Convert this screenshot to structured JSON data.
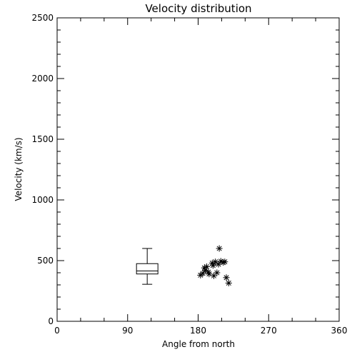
{
  "chart_data": {
    "type": "scatter",
    "title": "Velocity distribution",
    "xlabel": "Angle from north",
    "ylabel": "Velocity (km/s)",
    "xlim": [
      0,
      360
    ],
    "ylim": [
      0,
      2500
    ],
    "xticks": [
      0,
      90,
      180,
      270,
      360
    ],
    "yticks": [
      0,
      500,
      1000,
      1500,
      2000,
      2500
    ],
    "grid": false,
    "marker": "asterisk",
    "box": {
      "x": 115,
      "whisker_low": 305,
      "q1": 390,
      "median": 415,
      "q3": 475,
      "whisker_high": 600
    },
    "points": [
      {
        "x": 183,
        "y": 380
      },
      {
        "x": 186,
        "y": 395
      },
      {
        "x": 188,
        "y": 440
      },
      {
        "x": 189,
        "y": 420
      },
      {
        "x": 191,
        "y": 450
      },
      {
        "x": 193,
        "y": 405
      },
      {
        "x": 194,
        "y": 390
      },
      {
        "x": 198,
        "y": 480
      },
      {
        "x": 199,
        "y": 460
      },
      {
        "x": 200,
        "y": 375
      },
      {
        "x": 202,
        "y": 490
      },
      {
        "x": 204,
        "y": 400
      },
      {
        "x": 206,
        "y": 470
      },
      {
        "x": 207,
        "y": 600
      },
      {
        "x": 209,
        "y": 495
      },
      {
        "x": 212,
        "y": 485
      },
      {
        "x": 214,
        "y": 490
      },
      {
        "x": 216,
        "y": 360
      },
      {
        "x": 219,
        "y": 315
      }
    ]
  }
}
